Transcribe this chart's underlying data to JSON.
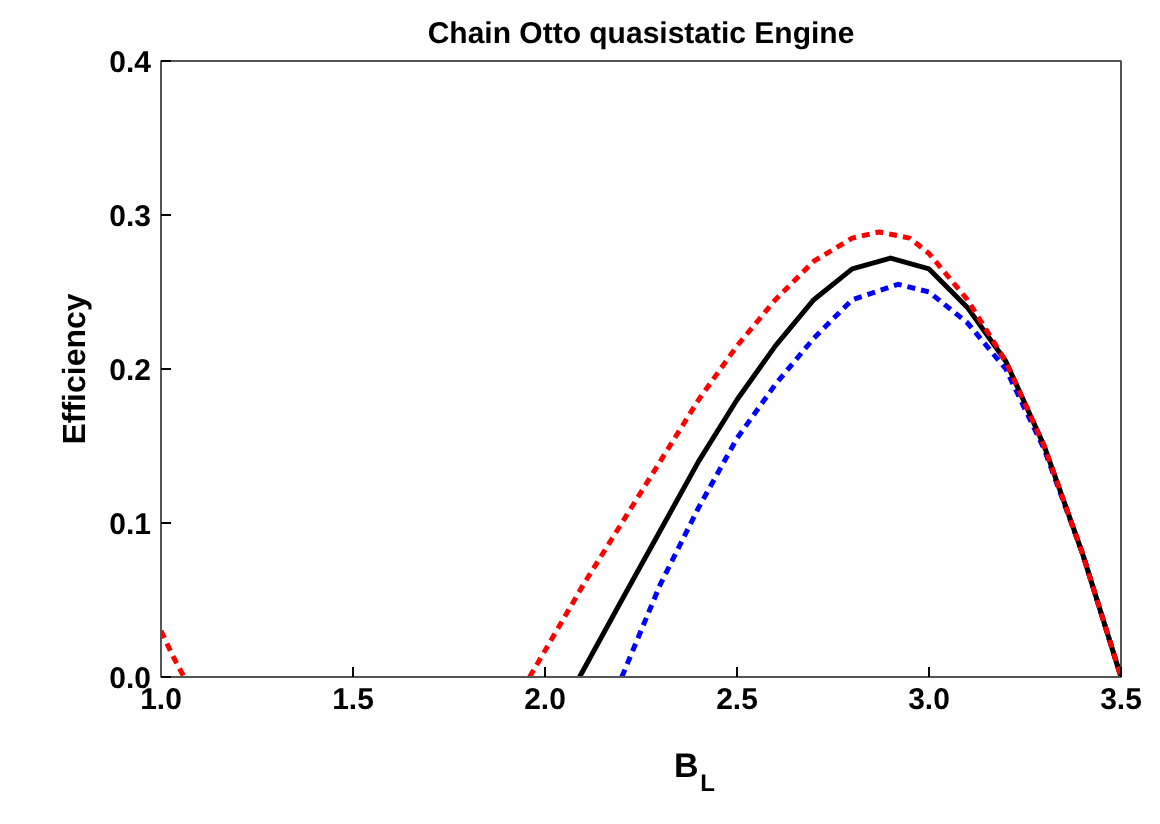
{
  "chart_data": {
    "type": "line",
    "title": "Chain Otto quasistatic Engine",
    "xlabel": "B$_{L}$",
    "ylabel": "Efficiency",
    "xlim": [
      1.0,
      3.5
    ],
    "ylim": [
      0,
      0.4
    ],
    "xticks": [
      {
        "value": 1.0,
        "label": "1.0"
      },
      {
        "value": 1.5,
        "label": "1.5"
      },
      {
        "value": 2.0,
        "label": "2.0"
      },
      {
        "value": 2.5,
        "label": "2.5"
      },
      {
        "value": 3.0,
        "label": "3.0"
      },
      {
        "value": 3.5,
        "label": "3.5"
      }
    ],
    "yticks": [
      {
        "value": 0,
        "label": "0.0"
      },
      {
        "value": 0.1,
        "label": "0.1"
      },
      {
        "value": 0.2,
        "label": "0.2"
      },
      {
        "value": 0.3,
        "label": "0.3"
      },
      {
        "value": 0.4,
        "label": "0.4"
      }
    ],
    "grid": false,
    "series": [
      {
        "color": "#ff0000",
        "line_style": "dashed",
        "x": [
          1.0,
          1.03,
          1.06,
          1.5,
          1.96,
          2.1,
          2.2,
          2.3,
          2.4,
          2.5,
          2.6,
          2.7,
          2.8,
          2.87,
          2.95,
          3.0,
          3.1,
          3.2,
          3.3,
          3.4,
          3.5
        ],
        "values": [
          0.03,
          0.014,
          0,
          null,
          0,
          0.06,
          0.1,
          0.14,
          0.18,
          0.215,
          0.245,
          0.27,
          0.285,
          0.289,
          0.285,
          0.275,
          0.245,
          0.205,
          0.15,
          0.08,
          0
        ]
      },
      {
        "color": "#000000",
        "line_style": "solid",
        "x": [
          2.09,
          2.2,
          2.3,
          2.4,
          2.5,
          2.6,
          2.7,
          2.8,
          2.9,
          3.0,
          3.1,
          3.2,
          3.3,
          3.4,
          3.5
        ],
        "values": [
          0,
          0.05,
          0.095,
          0.14,
          0.18,
          0.215,
          0.245,
          0.265,
          0.272,
          0.265,
          0.24,
          0.205,
          0.15,
          0.08,
          0
        ]
      },
      {
        "color": "#0000ff",
        "line_style": "dashed",
        "x": [
          2.2,
          2.3,
          2.4,
          2.5,
          2.6,
          2.7,
          2.8,
          2.92,
          3.0,
          3.1,
          3.2,
          3.3,
          3.4,
          3.5
        ],
        "values": [
          0,
          0.06,
          0.11,
          0.155,
          0.19,
          0.22,
          0.245,
          0.255,
          0.25,
          0.23,
          0.2,
          0.148,
          0.08,
          0
        ]
      }
    ]
  }
}
